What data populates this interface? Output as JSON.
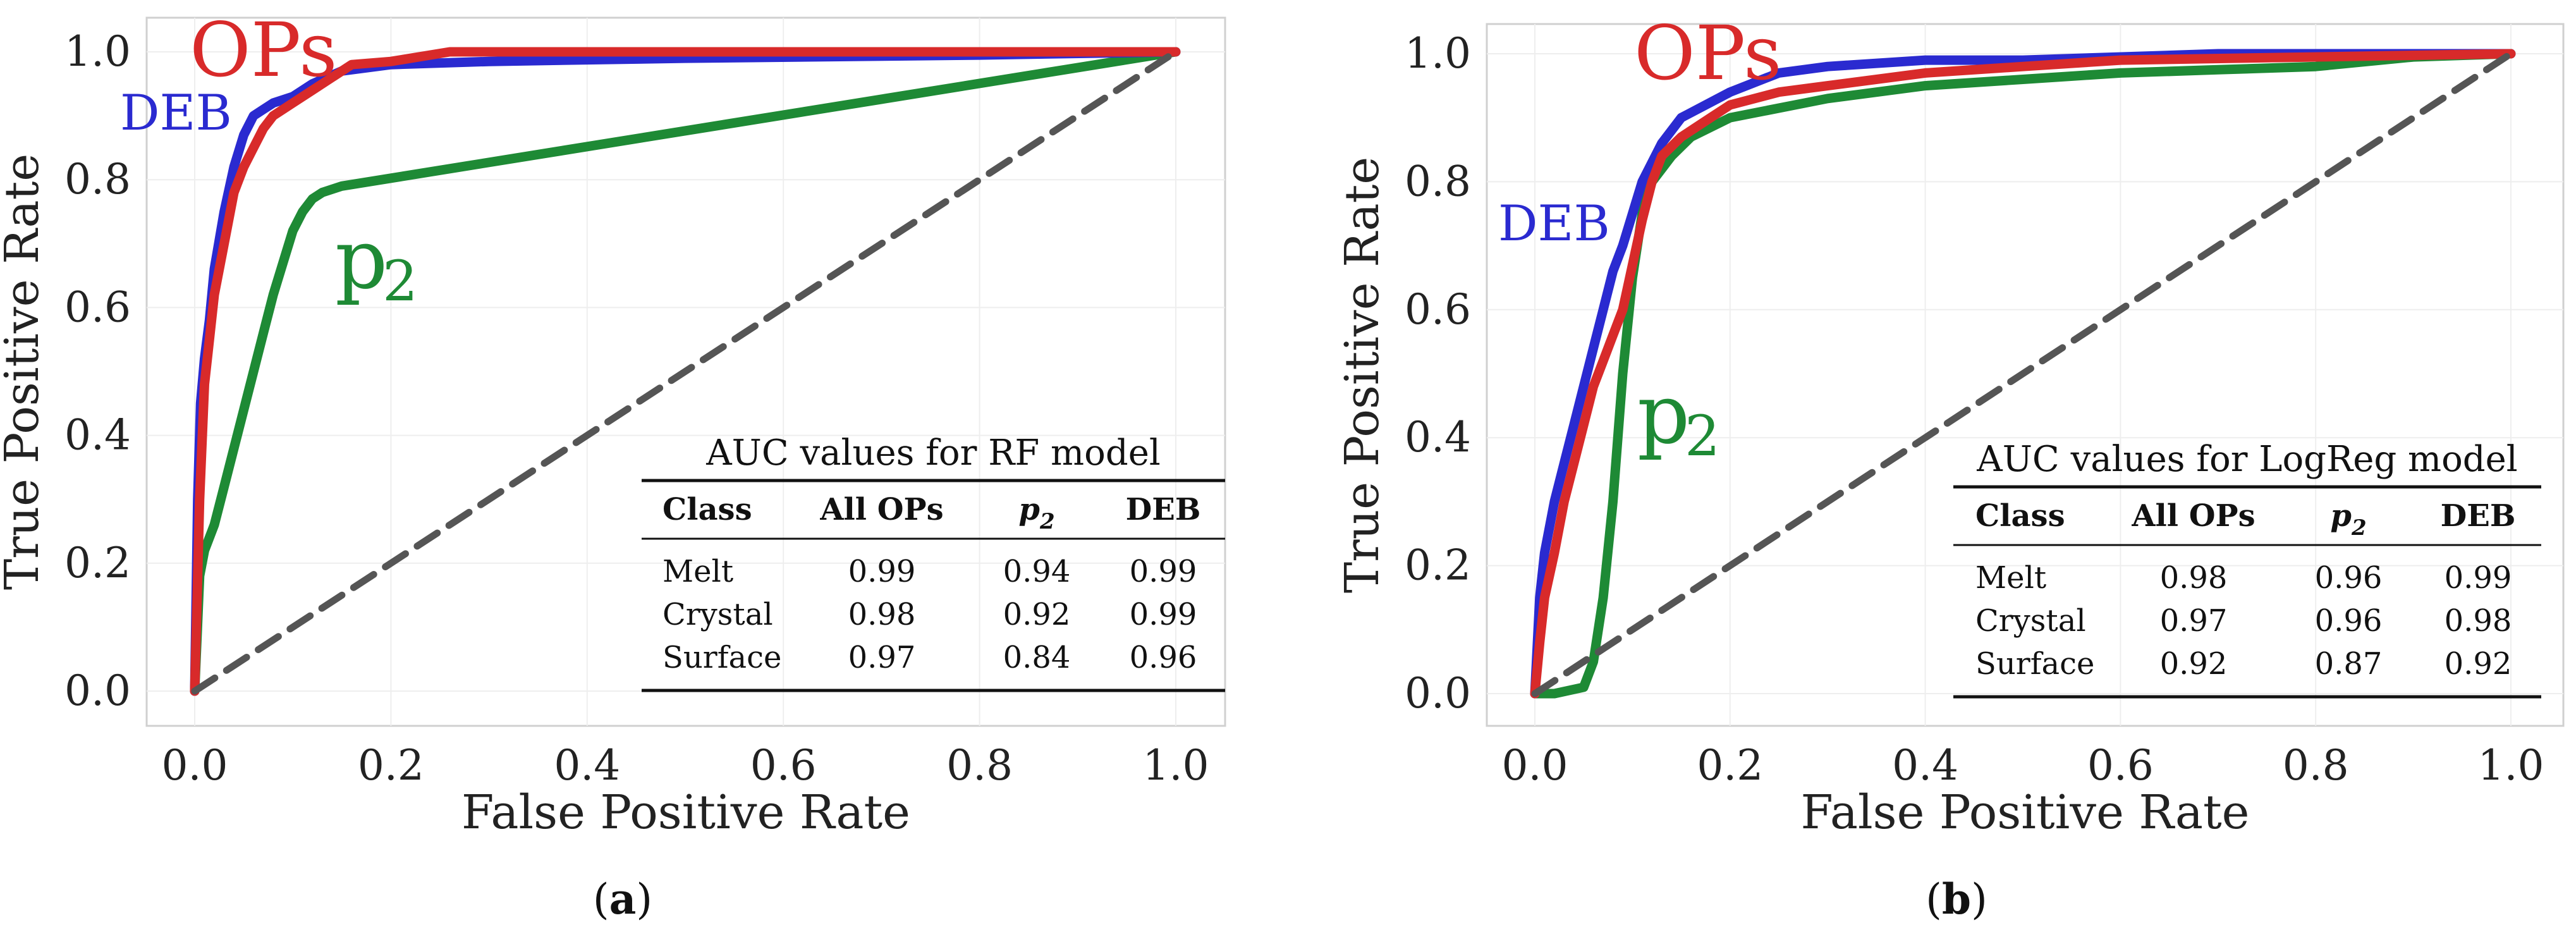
{
  "chart_data": [
    {
      "type": "line",
      "caption_letter": "a",
      "xlabel": "False Positive Rate",
      "ylabel": "True Positive Rate",
      "xlim": [
        0,
        1
      ],
      "ylim": [
        0,
        1
      ],
      "xticks": [
        "0.0",
        "0.2",
        "0.4",
        "0.6",
        "0.8",
        "1.0"
      ],
      "yticks": [
        "0.0",
        "0.2",
        "0.4",
        "0.6",
        "0.8",
        "1.0"
      ],
      "grid": true,
      "curve_labels": {
        "ops": "OPs",
        "deb": "DEB",
        "p2_base": "p",
        "p2_sub": "2"
      },
      "series": [
        {
          "key": "p2",
          "color": "#1e8a35",
          "x": [
            0,
            0.005,
            0.01,
            0.02,
            0.03,
            0.04,
            0.05,
            0.06,
            0.07,
            0.08,
            0.09,
            0.1,
            0.11,
            0.12,
            0.13,
            0.15,
            1.0
          ],
          "y": [
            0,
            0.18,
            0.22,
            0.26,
            0.32,
            0.38,
            0.44,
            0.5,
            0.56,
            0.62,
            0.67,
            0.72,
            0.75,
            0.77,
            0.78,
            0.79,
            1.0
          ]
        },
        {
          "key": "deb",
          "color": "#2a2ad0",
          "x": [
            0,
            0.003,
            0.006,
            0.01,
            0.015,
            0.02,
            0.03,
            0.04,
            0.05,
            0.06,
            0.07,
            0.08,
            0.1,
            0.12,
            0.15,
            0.2,
            0.3,
            0.5,
            0.8,
            1.0
          ],
          "y": [
            0,
            0.3,
            0.45,
            0.52,
            0.58,
            0.66,
            0.75,
            0.82,
            0.87,
            0.9,
            0.91,
            0.92,
            0.93,
            0.95,
            0.97,
            0.98,
            0.985,
            0.99,
            0.995,
            1.0
          ]
        },
        {
          "key": "ops",
          "color": "#d82a2a",
          "x": [
            0,
            0.005,
            0.01,
            0.015,
            0.02,
            0.03,
            0.04,
            0.05,
            0.06,
            0.07,
            0.08,
            0.1,
            0.12,
            0.14,
            0.16,
            0.2,
            0.26,
            0.4,
            0.6,
            1.0
          ],
          "y": [
            0,
            0.3,
            0.48,
            0.55,
            0.62,
            0.7,
            0.78,
            0.82,
            0.85,
            0.88,
            0.9,
            0.92,
            0.94,
            0.96,
            0.98,
            0.985,
            1.0,
            1.0,
            1.0,
            1.0
          ]
        },
        {
          "key": "diagonal",
          "color": "#555555",
          "dashed": true,
          "x": [
            0,
            1
          ],
          "y": [
            0,
            1
          ]
        }
      ],
      "table": {
        "title": "AUC values for RF model",
        "headers": [
          "Class",
          "All OPs",
          "p2",
          "DEB"
        ],
        "p2_header_base": "p",
        "p2_header_sub": "2",
        "rows": [
          [
            "Melt",
            "0.99",
            "0.94",
            "0.99"
          ],
          [
            "Crystal",
            "0.98",
            "0.92",
            "0.99"
          ],
          [
            "Surface",
            "0.97",
            "0.84",
            "0.96"
          ]
        ]
      }
    },
    {
      "type": "line",
      "caption_letter": "b",
      "xlabel": "False Positive Rate",
      "ylabel": "True Positive Rate",
      "xlim": [
        0,
        1
      ],
      "ylim": [
        0,
        1
      ],
      "xticks": [
        "0.0",
        "0.2",
        "0.4",
        "0.6",
        "0.8",
        "1.0"
      ],
      "yticks": [
        "0.0",
        "0.2",
        "0.4",
        "0.6",
        "0.8",
        "1.0"
      ],
      "grid": true,
      "curve_labels": {
        "ops": "OPs",
        "deb": "DEB",
        "p2_base": "p",
        "p2_sub": "2"
      },
      "series": [
        {
          "key": "p2",
          "color": "#1e8a35",
          "x": [
            0,
            0.02,
            0.05,
            0.06,
            0.07,
            0.08,
            0.09,
            0.1,
            0.11,
            0.12,
            0.14,
            0.16,
            0.2,
            0.3,
            0.4,
            0.5,
            0.6,
            0.7,
            0.8,
            0.9,
            1.0
          ],
          "y": [
            0,
            0.0,
            0.01,
            0.05,
            0.15,
            0.3,
            0.5,
            0.65,
            0.75,
            0.8,
            0.84,
            0.87,
            0.9,
            0.93,
            0.95,
            0.96,
            0.97,
            0.975,
            0.98,
            0.995,
            1.0
          ]
        },
        {
          "key": "deb",
          "color": "#2a2ad0",
          "x": [
            0,
            0.005,
            0.01,
            0.02,
            0.03,
            0.04,
            0.05,
            0.06,
            0.07,
            0.08,
            0.09,
            0.1,
            0.11,
            0.13,
            0.15,
            0.2,
            0.25,
            0.3,
            0.4,
            0.5,
            0.7,
            1.0
          ],
          "y": [
            0,
            0.15,
            0.22,
            0.3,
            0.36,
            0.42,
            0.48,
            0.54,
            0.6,
            0.66,
            0.7,
            0.75,
            0.8,
            0.86,
            0.9,
            0.94,
            0.97,
            0.98,
            0.99,
            0.99,
            1.0,
            1.0
          ]
        },
        {
          "key": "ops",
          "color": "#d82a2a",
          "x": [
            0,
            0.005,
            0.01,
            0.02,
            0.03,
            0.04,
            0.05,
            0.06,
            0.07,
            0.08,
            0.09,
            0.1,
            0.11,
            0.12,
            0.13,
            0.15,
            0.18,
            0.2,
            0.25,
            0.3,
            0.4,
            0.5,
            0.6,
            1.0
          ],
          "y": [
            0,
            0.08,
            0.15,
            0.22,
            0.3,
            0.36,
            0.42,
            0.48,
            0.52,
            0.56,
            0.6,
            0.67,
            0.74,
            0.8,
            0.84,
            0.87,
            0.9,
            0.92,
            0.94,
            0.95,
            0.97,
            0.98,
            0.99,
            1.0
          ]
        },
        {
          "key": "diagonal",
          "color": "#555555",
          "dashed": true,
          "x": [
            0,
            1
          ],
          "y": [
            0,
            1
          ]
        }
      ],
      "table": {
        "title": "AUC values for LogReg model",
        "headers": [
          "Class",
          "All OPs",
          "p2",
          "DEB"
        ],
        "p2_header_base": "p",
        "p2_header_sub": "2",
        "rows": [
          [
            "Melt",
            "0.98",
            "0.96",
            "0.99"
          ],
          [
            "Crystal",
            "0.97",
            "0.96",
            "0.98"
          ],
          [
            "Surface",
            "0.92",
            "0.87",
            "0.92"
          ]
        ]
      }
    }
  ]
}
